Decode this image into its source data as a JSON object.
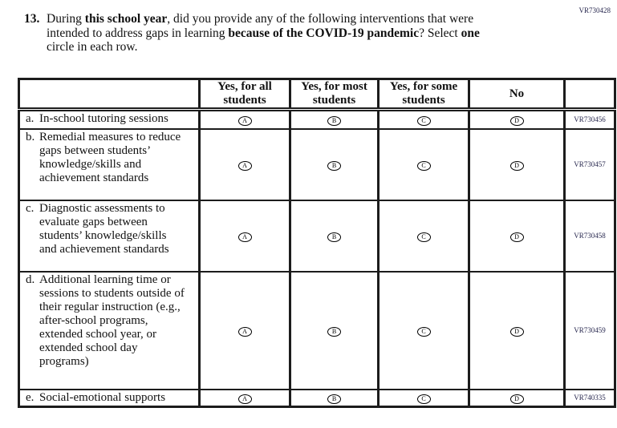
{
  "page": {
    "top_code": "VR730428"
  },
  "question": {
    "number": "13.",
    "lines": [
      {
        "segments": [
          {
            "text": "During ",
            "bold": false
          },
          {
            "text": "this school year",
            "bold": true
          },
          {
            "text": ", did you provide any of the following interventions that were",
            "bold": false
          }
        ]
      },
      {
        "segments": [
          {
            "text": "intended to address gaps in learning ",
            "bold": false
          },
          {
            "text": "because of the COVID-19 pandemic",
            "bold": true
          },
          {
            "text": "? Select ",
            "bold": false
          },
          {
            "text": "one",
            "bold": true
          }
        ]
      },
      {
        "segments": [
          {
            "text": "circle in each row.",
            "bold": false
          }
        ]
      }
    ]
  },
  "table": {
    "columns": [
      {
        "key": "row-label",
        "lines": [
          ""
        ]
      },
      {
        "key": "yes-for-all-students",
        "lines": [
          "Yes, for all",
          "students"
        ]
      },
      {
        "key": "yes-for-most-students",
        "lines": [
          "Yes, for most",
          "students"
        ]
      },
      {
        "key": "yes-for-some-students",
        "lines": [
          "Yes, for some",
          "students"
        ]
      },
      {
        "key": "no",
        "lines": [
          "No"
        ]
      },
      {
        "key": "code",
        "lines": [
          ""
        ]
      }
    ],
    "rows": [
      {
        "letter": "a.",
        "label": "In-school tutoring sessions",
        "options": [
          "A",
          "B",
          "C",
          "D"
        ],
        "code": "VR730456"
      },
      {
        "letter": "b.",
        "label": "Remedial measures to reduce gaps between students’ knowledge/skills and achievement standards",
        "options": [
          "A",
          "B",
          "C",
          "D"
        ],
        "code": "VR730457"
      },
      {
        "letter": "c.",
        "label": "Diagnostic assessments to evaluate gaps between students’ knowledge/skills and achievement standards",
        "options": [
          "A",
          "B",
          "C",
          "D"
        ],
        "code": "VR730458"
      },
      {
        "letter": "d.",
        "label": "Additional learning time or sessions to students outside of their regular instruction (e.g., after-school programs, extended school year, or extended school day programs)",
        "options": [
          "A",
          "B",
          "C",
          "D"
        ],
        "code": "VR730459"
      },
      {
        "letter": "e.",
        "label": "Social-emotional supports",
        "options": [
          "A",
          "B",
          "C",
          "D"
        ],
        "code": "VR740335"
      }
    ]
  },
  "colors": {
    "code_text": "#28284f",
    "border": "#1c1c1c"
  }
}
